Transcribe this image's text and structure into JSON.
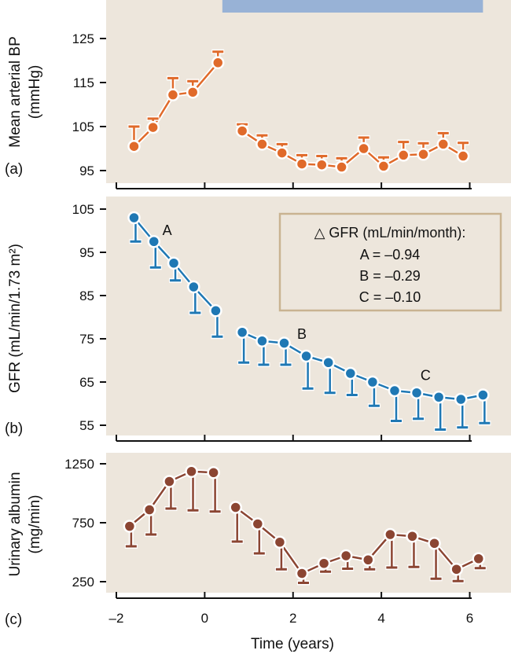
{
  "colors": {
    "panel_bg": "#ede6dc",
    "frame": "#c9b391",
    "treatment_bar": "#98b2d6",
    "bp": "#e06a2a",
    "gfr": "#1f78b4",
    "albumin": "#8b4532",
    "marker_outline": "#ffffff"
  },
  "xaxis": {
    "label": "Time (years)",
    "ticks": [
      -2,
      0,
      2,
      4,
      6
    ],
    "tick_labels": [
      "–2",
      "0",
      "2",
      "4",
      "6"
    ],
    "range": [
      -2.2,
      6.6
    ]
  },
  "chart_data": [
    {
      "type": "line",
      "panel_label": "(a)",
      "ylabel": "Mean arterial BP",
      "ylabel_unit": "(mmHg)",
      "ylim": [
        93.5,
        131
      ],
      "yticks": [
        95,
        105,
        115,
        125
      ],
      "treatment_bar_x": [
        0.4,
        6.3
      ],
      "error_direction": "up",
      "segments": [
        {
          "x": [
            -1.6,
            -1.17,
            -0.72,
            -0.27,
            0.3
          ],
          "y": [
            100.5,
            104.8,
            112.2,
            112.8,
            119.5
          ],
          "err": [
            4.5,
            2.0,
            3.8,
            2.5,
            2.5
          ]
        },
        {
          "x": [
            0.85,
            1.3,
            1.75,
            2.2,
            2.65,
            3.1,
            3.6,
            4.05,
            4.5,
            4.95,
            5.4,
            5.85
          ],
          "y": [
            104,
            101,
            99,
            96.5,
            96.3,
            95.8,
            100,
            96,
            98.5,
            98.7,
            101,
            98.3
          ],
          "err": [
            1.5,
            2.0,
            2.0,
            2.0,
            2.0,
            2.0,
            2.5,
            2.0,
            3.0,
            2.5,
            2.5,
            3.0
          ]
        }
      ]
    },
    {
      "type": "line",
      "panel_label": "(b)",
      "ylabel": "GFR (mL/min/1.73 m²)",
      "ylim": [
        53,
        106
      ],
      "yticks": [
        55,
        65,
        75,
        85,
        95,
        105
      ],
      "error_direction": "down",
      "segments": [
        {
          "x": [
            -1.6,
            -1.15,
            -0.7,
            -0.25,
            0.25
          ],
          "y": [
            103,
            97.5,
            92.5,
            87,
            81.5
          ],
          "err": [
            5.5,
            6.0,
            4.0,
            6.0,
            6.0
          ]
        },
        {
          "x": [
            0.85,
            1.3,
            1.8,
            2.3,
            2.8,
            3.3,
            3.8,
            4.3,
            4.8,
            5.3,
            5.8,
            6.3
          ],
          "y": [
            76.5,
            74.5,
            74,
            71,
            69.5,
            67,
            65,
            63,
            62.5,
            61.5,
            61,
            62
          ],
          "err": [
            7.0,
            5.5,
            5.0,
            7.5,
            7.0,
            5.0,
            5.5,
            7.0,
            6.0,
            7.5,
            6.5,
            6.5
          ]
        }
      ],
      "point_labels": [
        {
          "text": "A",
          "x": -0.85,
          "y": 99
        },
        {
          "text": "B",
          "x": 2.2,
          "y": 75
        },
        {
          "text": "C",
          "x": 5.0,
          "y": 65.5
        }
      ],
      "box": {
        "title": "△ GFR (mL/min/month):",
        "lines": [
          "A = –0.94",
          "B = –0.29",
          "C = –0.10"
        ]
      }
    },
    {
      "type": "line",
      "panel_label": "(c)",
      "ylabel": "Urinary albumin",
      "ylabel_unit": "(mg/min)",
      "ylim": [
        165,
        1265
      ],
      "yticks": [
        250,
        750,
        1250
      ],
      "error_direction": "down",
      "segments": [
        {
          "x": [
            -1.7,
            -1.25,
            -0.8,
            -0.3,
            0.2
          ],
          "y": [
            720,
            860,
            1100,
            1185,
            1175
          ],
          "err": [
            170,
            210,
            230,
            330,
            330
          ]
        },
        {
          "x": [
            0.7,
            1.2,
            1.7,
            2.2,
            2.7,
            3.2,
            3.7,
            4.2,
            4.7,
            5.2,
            5.7,
            6.2
          ],
          "y": [
            880,
            740,
            585,
            320,
            405,
            470,
            435,
            650,
            635,
            575,
            355,
            445
          ],
          "err": [
            290,
            250,
            230,
            80,
            70,
            110,
            80,
            280,
            260,
            300,
            100,
            80
          ]
        }
      ]
    }
  ]
}
